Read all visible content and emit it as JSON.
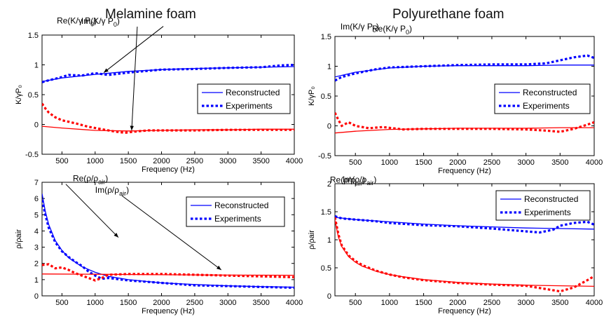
{
  "titles": {
    "left": "Melamine foam",
    "right": "Polyurethane foam"
  },
  "legend": {
    "reconstructed": "Reconstructed",
    "experiments": "Experiments"
  },
  "colors": {
    "blue": "#0000ff",
    "red": "#ff0000"
  },
  "chart_data": [
    {
      "type": "line",
      "xlabel": "Frequency (Hz)",
      "ylabel": "K/γP₀",
      "xlim": [
        200,
        4000
      ],
      "ylim": [
        -0.5,
        1.5
      ],
      "xticks": [
        "500",
        "1000",
        "1500",
        "2000",
        "2500",
        "3000",
        "3500",
        "4000"
      ],
      "yticks": [
        "-0.5",
        "0",
        "0.5",
        "1",
        "1.5"
      ],
      "annotations": [
        {
          "text": "Re(K/γ P₀)",
          "x": 1130,
          "y": 0.87
        },
        {
          "text": "Im(K/γ P₀)",
          "x": 1550,
          "y": -0.1
        }
      ],
      "series": [
        {
          "name": "Re(K/γ P₀)",
          "kind": "reconstructed",
          "color": "blue",
          "x": [
            200,
            500,
            1000,
            1500,
            2000,
            2500,
            3000,
            3500,
            4000
          ],
          "y": [
            0.72,
            0.78,
            0.84,
            0.89,
            0.92,
            0.94,
            0.95,
            0.96,
            0.97
          ]
        },
        {
          "name": "Re(K/γ P₀)",
          "kind": "experiments",
          "color": "blue",
          "x": [
            200,
            300,
            450,
            600,
            800,
            1000,
            1200,
            1500,
            1800,
            2000,
            2500,
            3000,
            3500,
            3800,
            4000
          ],
          "y": [
            0.71,
            0.74,
            0.78,
            0.83,
            0.82,
            0.86,
            0.83,
            0.87,
            0.9,
            0.92,
            0.93,
            0.95,
            0.96,
            0.99,
            1.0
          ]
        },
        {
          "name": "Im(K/γ P₀)",
          "kind": "reconstructed",
          "color": "red",
          "x": [
            200,
            500,
            1000,
            1500,
            2000,
            2500,
            3000,
            3500,
            4000
          ],
          "y": [
            -0.03,
            -0.06,
            -0.1,
            -0.11,
            -0.1,
            -0.09,
            -0.09,
            -0.08,
            -0.08
          ]
        },
        {
          "name": "Im(K/γ P₀)",
          "kind": "experiments",
          "color": "red",
          "x": [
            200,
            250,
            300,
            400,
            500,
            700,
            900,
            1100,
            1300,
            1450,
            1600,
            1800,
            2000,
            2500,
            3000,
            3500,
            4000
          ],
          "y": [
            0.35,
            0.27,
            0.2,
            0.12,
            0.07,
            0.02,
            -0.04,
            -0.08,
            -0.12,
            -0.14,
            -0.12,
            -0.1,
            -0.1,
            -0.1,
            -0.09,
            -0.09,
            -0.09
          ]
        }
      ]
    },
    {
      "type": "line",
      "xlabel": "Frequency (Hz)",
      "ylabel": "K/γP₀",
      "xlim": [
        200,
        4000
      ],
      "ylim": [
        -0.5,
        1.5
      ],
      "xticks": [
        "500",
        "1000",
        "1500",
        "2000",
        "2500",
        "3000",
        "3500",
        "4000"
      ],
      "yticks": [
        "-0.5",
        "0",
        "0.5",
        "1",
        "1.5"
      ],
      "annotations": [
        {
          "text": "Re(K/γ P₀)",
          "x": 950,
          "y": 1.17
        },
        {
          "text": "Im(K/γ P₀)",
          "x": 1000,
          "y": 0.3
        }
      ],
      "series": [
        {
          "name": "Re(K/γ P₀)",
          "kind": "reconstructed",
          "color": "blue",
          "x": [
            200,
            500,
            1000,
            1500,
            2000,
            2500,
            3000,
            3500,
            4000
          ],
          "y": [
            0.82,
            0.9,
            0.97,
            1.0,
            1.01,
            1.01,
            1.01,
            1.02,
            1.02
          ]
        },
        {
          "name": "Re(K/γ P₀)",
          "kind": "experiments",
          "color": "blue",
          "x": [
            200,
            300,
            500,
            800,
            1000,
            1500,
            2000,
            2500,
            3000,
            3300,
            3500,
            3700,
            3900,
            4000
          ],
          "y": [
            0.76,
            0.82,
            0.88,
            0.95,
            0.98,
            1.0,
            1.02,
            1.03,
            1.03,
            1.05,
            1.1,
            1.15,
            1.18,
            1.14
          ]
        },
        {
          "name": "Im(K/γ P₀)",
          "kind": "reconstructed",
          "color": "red",
          "x": [
            200,
            500,
            1000,
            1500,
            2000,
            2500,
            3000,
            3500,
            4000
          ],
          "y": [
            -0.12,
            -0.09,
            -0.06,
            -0.05,
            -0.04,
            -0.04,
            -0.04,
            -0.03,
            -0.03
          ]
        },
        {
          "name": "Im(K/γ P₀)",
          "kind": "experiments",
          "color": "red",
          "x": [
            200,
            250,
            300,
            400,
            500,
            700,
            900,
            1200,
            1500,
            2000,
            2500,
            3000,
            3300,
            3500,
            3700,
            3900,
            4000
          ],
          "y": [
            0.22,
            0.1,
            0.0,
            0.06,
            0.0,
            -0.04,
            -0.02,
            -0.06,
            -0.05,
            -0.05,
            -0.05,
            -0.06,
            -0.08,
            -0.1,
            -0.05,
            0.02,
            0.06
          ]
        }
      ]
    },
    {
      "type": "line",
      "xlabel": "Frequency (Hz)",
      "ylabel": "ρ/ρair",
      "xlim": [
        200,
        4000
      ],
      "ylim": [
        0,
        7
      ],
      "xticks": [
        "500",
        "1000",
        "1500",
        "2000",
        "2500",
        "3000",
        "3500",
        "4000"
      ],
      "yticks": [
        "0",
        "1",
        "2",
        "3",
        "4",
        "5",
        "6",
        "7"
      ],
      "annotations": [
        {
          "text": "Re(ρ/ρair)",
          "x": 1350,
          "y": 3.6
        },
        {
          "text": "Im(ρ/ρair)",
          "x": 2900,
          "y": 1.6
        }
      ],
      "series": [
        {
          "name": "Re(ρ/ρair)",
          "kind": "reconstructed",
          "color": "blue",
          "x": [
            200,
            250,
            300,
            400,
            500,
            600,
            800,
            1000,
            1200,
            1500,
            2000,
            2500,
            3000,
            3500,
            4000
          ],
          "y": [
            6.3,
            5.2,
            4.4,
            3.4,
            2.8,
            2.35,
            1.8,
            1.45,
            1.2,
            1.0,
            0.8,
            0.7,
            0.62,
            0.57,
            0.53
          ]
        },
        {
          "name": "Re(ρ/ρair)",
          "kind": "experiments",
          "color": "blue",
          "x": [
            200,
            250,
            300,
            400,
            500,
            600,
            700,
            800,
            900,
            1000,
            1100,
            1200,
            1500,
            2000,
            2500,
            3000,
            3500,
            4000
          ],
          "y": [
            5.9,
            5.0,
            4.2,
            3.3,
            2.75,
            2.4,
            2.1,
            1.85,
            1.5,
            1.25,
            1.05,
            1.1,
            0.95,
            0.8,
            0.65,
            0.6,
            0.55,
            0.5
          ]
        },
        {
          "name": "Im(ρ/ρair)",
          "kind": "reconstructed",
          "color": "red",
          "x": [
            200,
            1000,
            2000,
            3000,
            4000
          ],
          "y": [
            1.35,
            1.33,
            1.3,
            1.28,
            1.27
          ]
        },
        {
          "name": "Im(ρ/ρair)",
          "kind": "experiments",
          "color": "red",
          "x": [
            200,
            300,
            400,
            500,
            600,
            700,
            800,
            900,
            1000,
            1100,
            1200,
            1500,
            2000,
            2500,
            3000,
            3500,
            4000
          ],
          "y": [
            1.9,
            1.95,
            1.7,
            1.75,
            1.6,
            1.4,
            1.25,
            1.1,
            0.95,
            1.1,
            1.3,
            1.35,
            1.35,
            1.3,
            1.25,
            1.2,
            1.15
          ]
        }
      ]
    },
    {
      "type": "line",
      "xlabel": "Frequency (Hz)",
      "ylabel": "ρ/ρair",
      "xlim": [
        200,
        4000
      ],
      "ylim": [
        0,
        2
      ],
      "xticks": [
        "500",
        "1000",
        "1500",
        "2000",
        "2500",
        "3000",
        "3500",
        "4000"
      ],
      "yticks": [
        "0",
        "0.5",
        "1",
        "1.5",
        "2"
      ],
      "annotations": [
        {
          "text": "Re(ρ/ρair)",
          "x": 1000,
          "y": 1.52
        },
        {
          "text": "Im(ρ/ρair)",
          "x": 1700,
          "y": 0.4
        }
      ],
      "series": [
        {
          "name": "Re(ρ/ρair)",
          "kind": "reconstructed",
          "color": "blue",
          "x": [
            200,
            500,
            1000,
            1500,
            2000,
            2500,
            3000,
            3500,
            4000
          ],
          "y": [
            1.4,
            1.36,
            1.32,
            1.28,
            1.25,
            1.23,
            1.21,
            1.2,
            1.19
          ]
        },
        {
          "name": "Re(ρ/ρair)",
          "kind": "experiments",
          "color": "blue",
          "x": [
            200,
            300,
            500,
            800,
            1000,
            1500,
            2000,
            2500,
            3000,
            3200,
            3400,
            3500,
            3700,
            3900,
            4000
          ],
          "y": [
            1.42,
            1.38,
            1.36,
            1.33,
            1.3,
            1.26,
            1.24,
            1.2,
            1.15,
            1.13,
            1.18,
            1.25,
            1.3,
            1.32,
            1.27
          ]
        },
        {
          "name": "Im(ρ/ρair)",
          "kind": "reconstructed",
          "color": "red",
          "x": [
            200,
            250,
            300,
            400,
            500,
            600,
            800,
            1000,
            1200,
            1500,
            2000,
            2500,
            3000,
            3500,
            4000
          ],
          "y": [
            1.35,
            1.05,
            0.88,
            0.7,
            0.6,
            0.53,
            0.44,
            0.38,
            0.34,
            0.29,
            0.24,
            0.21,
            0.19,
            0.18,
            0.17
          ]
        },
        {
          "name": "Im(ρ/ρair)",
          "kind": "experiments",
          "color": "red",
          "x": [
            200,
            250,
            300,
            400,
            500,
            600,
            800,
            1000,
            1200,
            1500,
            2000,
            2500,
            3000,
            3300,
            3500,
            3700,
            3900,
            4000
          ],
          "y": [
            1.4,
            1.1,
            0.9,
            0.72,
            0.62,
            0.55,
            0.45,
            0.38,
            0.33,
            0.28,
            0.23,
            0.2,
            0.18,
            0.12,
            0.08,
            0.15,
            0.28,
            0.35
          ]
        }
      ]
    }
  ]
}
